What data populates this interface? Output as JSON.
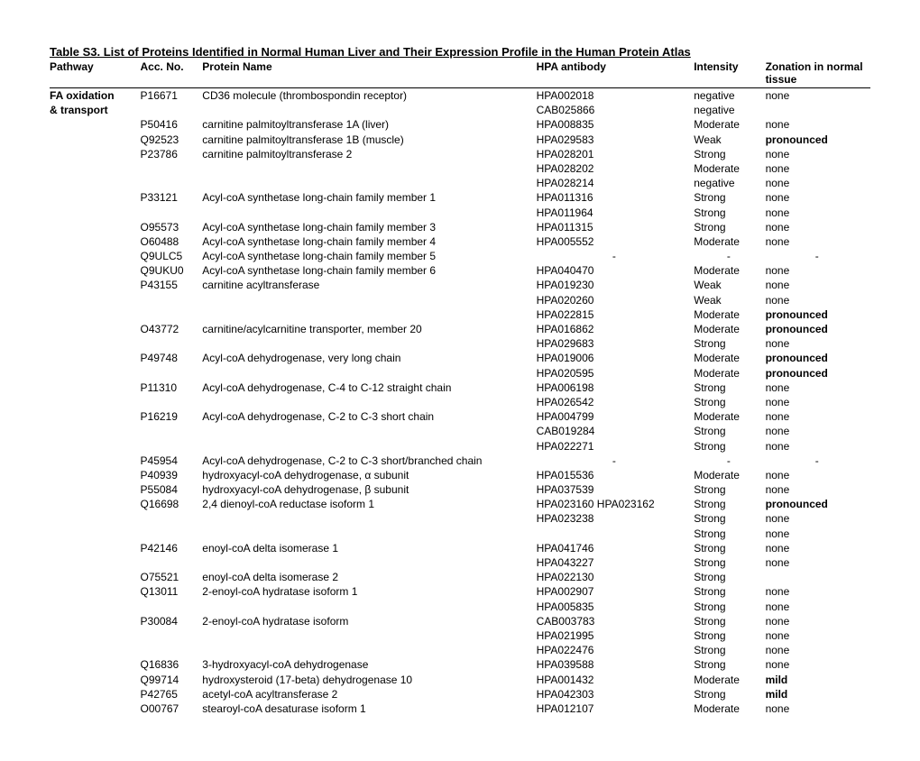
{
  "title": "Table S3. List of Proteins Identified in Normal Human Liver and Their Expression Profile in the Human Protein Atlas",
  "headers": {
    "pathway": "Pathway",
    "acc": "Acc. No.",
    "name": "Protein Name",
    "hpa": "HPA antibody",
    "intensity": "Intensity",
    "zonation": "Zonation in normal tissue"
  },
  "rows": [
    {
      "pathway": "FA oxidation",
      "acc": "P16671",
      "name": "CD36 molecule (thrombospondin receptor)",
      "hpa": "HPA002018",
      "int": "negative",
      "zon": "none",
      "pathwayBold": true
    },
    {
      "pathway": "& transport",
      "acc": "",
      "name": "",
      "hpa": "CAB025866",
      "int": "negative",
      "zon": "",
      "pathwayBold": true
    },
    {
      "pathway": "",
      "acc": "P50416",
      "name": "carnitine palmitoyltransferase 1A (liver)",
      "hpa": "HPA008835",
      "int": "Moderate",
      "zon": "none"
    },
    {
      "pathway": "",
      "acc": "Q92523",
      "name": "carnitine palmitoyltransferase 1B (muscle)",
      "hpa": "HPA029583",
      "int": "Weak",
      "zon": "pronounced",
      "zonBold": true
    },
    {
      "pathway": "",
      "acc": "P23786",
      "name": "carnitine palmitoyltransferase 2",
      "hpa": "HPA028201",
      "int": "Strong",
      "zon": "none"
    },
    {
      "pathway": "",
      "acc": "",
      "name": "",
      "hpa": "HPA028202",
      "int": "Moderate",
      "zon": "none"
    },
    {
      "pathway": "",
      "acc": "",
      "name": "",
      "hpa": "HPA028214",
      "int": "negative",
      "zon": "none"
    },
    {
      "pathway": "",
      "acc": "P33121",
      "name": "Acyl-coA synthetase long-chain family member 1",
      "hpa": "HPA011316",
      "int": "Strong",
      "zon": "none"
    },
    {
      "pathway": "",
      "acc": "",
      "name": "",
      "hpa": "HPA011964",
      "int": "Strong",
      "zon": "none"
    },
    {
      "pathway": "",
      "acc": "O95573",
      "name": "Acyl-coA synthetase long-chain family member 3",
      "hpa": "HPA011315",
      "int": "Strong",
      "zon": "none"
    },
    {
      "pathway": "",
      "acc": "O60488",
      "name": "Acyl-coA synthetase long-chain family member 4",
      "hpa": "HPA005552",
      "int": "Moderate",
      "zon": "none"
    },
    {
      "pathway": "",
      "acc": "Q9ULC5",
      "name": "Acyl-coA synthetase long-chain family member 5",
      "hpa": "-",
      "int": "-",
      "zon": "-",
      "dash": true
    },
    {
      "pathway": "",
      "acc": "Q9UKU0",
      "name": "Acyl-coA synthetase long-chain family member 6",
      "hpa": "HPA040470",
      "int": "Moderate",
      "zon": "none"
    },
    {
      "pathway": "",
      "acc": "P43155",
      "name": "carnitine acyltransferase",
      "hpa": "HPA019230",
      "int": "Weak",
      "zon": "none"
    },
    {
      "pathway": "",
      "acc": "",
      "name": "",
      "hpa": "HPA020260",
      "int": "Weak",
      "zon": "none"
    },
    {
      "pathway": "",
      "acc": "",
      "name": "",
      "hpa": "HPA022815",
      "int": "Moderate",
      "zon": "pronounced",
      "zonBold": true
    },
    {
      "pathway": "",
      "acc": "O43772",
      "name": "carnitine/acylcarnitine transporter, member 20",
      "hpa": "HPA016862",
      "int": "Moderate",
      "zon": "pronounced",
      "zonBold": true
    },
    {
      "pathway": "",
      "acc": "",
      "name": "",
      "hpa": "HPA029683",
      "int": "Strong",
      "zon": "none"
    },
    {
      "pathway": "",
      "acc": "P49748",
      "name": "Acyl-coA dehydrogenase, very long chain",
      "hpa": "HPA019006",
      "int": "Moderate",
      "zon": "pronounced",
      "zonBold": true
    },
    {
      "pathway": "",
      "acc": "",
      "name": "",
      "hpa": "HPA020595",
      "int": "Moderate",
      "zon": "pronounced",
      "zonBold": true
    },
    {
      "pathway": "",
      "acc": "P11310",
      "name": "Acyl-coA dehydrogenase, C-4 to C-12 straight chain",
      "hpa": "HPA006198",
      "int": "Strong",
      "zon": "none"
    },
    {
      "pathway": "",
      "acc": "",
      "name": "",
      "hpa": "HPA026542",
      "int": "Strong",
      "zon": "none"
    },
    {
      "pathway": "",
      "acc": "P16219",
      "name": "Acyl-coA dehydrogenase, C-2 to C-3 short chain",
      "hpa": "HPA004799",
      "int": "Moderate",
      "zon": "none"
    },
    {
      "pathway": "",
      "acc": "",
      "name": "",
      "hpa": "CAB019284",
      "int": "Strong",
      "zon": "none"
    },
    {
      "pathway": "",
      "acc": "",
      "name": "",
      "hpa": "HPA022271",
      "int": "Strong",
      "zon": "none"
    },
    {
      "pathway": "",
      "acc": "P45954",
      "name": "Acyl-coA dehydrogenase, C-2 to C-3 short/branched chain",
      "hpa": "-",
      "int": "-",
      "zon": "-",
      "dash": true
    },
    {
      "pathway": "",
      "acc": "P40939",
      "name": "hydroxyacyl-coA dehydrogenase, α subunit",
      "hpa": "HPA015536",
      "int": "Moderate",
      "zon": "none"
    },
    {
      "pathway": "",
      "acc": "P55084",
      "name": "hydroxyacyl-coA dehydrogenase, β subunit",
      "hpa": "HPA037539",
      "int": "Strong",
      "zon": "none"
    },
    {
      "pathway": "",
      "acc": "Q16698",
      "name": "2,4 dienoyl-coA reductase isoform 1",
      "hpa": "HPA023160 HPA023162",
      "int": "Strong",
      "zon": "pronounced",
      "zonBold": true
    },
    {
      "pathway": "",
      "acc": "",
      "name": "",
      "hpa": "HPA023238",
      "int": "Strong",
      "zon": "none"
    },
    {
      "pathway": "",
      "acc": "",
      "name": "",
      "hpa": "",
      "int": "Strong",
      "zon": "none"
    },
    {
      "pathway": "",
      "acc": "P42146",
      "name": "enoyl-coA delta isomerase 1",
      "hpa": "HPA041746",
      "int": "Strong",
      "zon": "none"
    },
    {
      "pathway": "",
      "acc": "",
      "name": "",
      "hpa": "HPA043227",
      "int": "Strong",
      "zon": "none"
    },
    {
      "pathway": "",
      "acc": "O75521",
      "name": "enoyl-coA delta isomerase 2",
      "hpa": "HPA022130",
      "int": "Strong",
      "zon": ""
    },
    {
      "pathway": "",
      "acc": "Q13011",
      "name": "2-enoyl-coA hydratase isoform 1",
      "hpa": "HPA002907",
      "int": "Strong",
      "zon": "none"
    },
    {
      "pathway": "",
      "acc": "",
      "name": "",
      "hpa": "HPA005835",
      "int": "Strong",
      "zon": "none"
    },
    {
      "pathway": "",
      "acc": "P30084",
      "name": "2-enoyl-coA hydratase isoform",
      "hpa": "CAB003783",
      "int": "Strong",
      "zon": "none"
    },
    {
      "pathway": "",
      "acc": "",
      "name": "",
      "hpa": "HPA021995",
      "int": "Strong",
      "zon": "none"
    },
    {
      "pathway": "",
      "acc": "",
      "name": "",
      "hpa": "HPA022476",
      "int": "Strong",
      "zon": "none"
    },
    {
      "pathway": "",
      "acc": "Q16836",
      "name": "3-hydroxyacyl-coA dehydrogenase",
      "hpa": "HPA039588",
      "int": "Strong",
      "zon": "none"
    },
    {
      "pathway": "",
      "acc": "Q99714",
      "name": "hydroxysteroid (17-beta) dehydrogenase 10",
      "hpa": "HPA001432",
      "int": "Moderate",
      "zon": "mild",
      "zonBold": true
    },
    {
      "pathway": "",
      "acc": "P42765",
      "name": "acetyl-coA acyltransferase 2",
      "hpa": "HPA042303",
      "int": "Strong",
      "zon": "mild",
      "zonBold": true
    },
    {
      "pathway": "",
      "acc": "O00767",
      "name": "stearoyl-coA desaturase isoform 1",
      "hpa": "HPA012107",
      "int": "Moderate",
      "zon": "none"
    }
  ]
}
